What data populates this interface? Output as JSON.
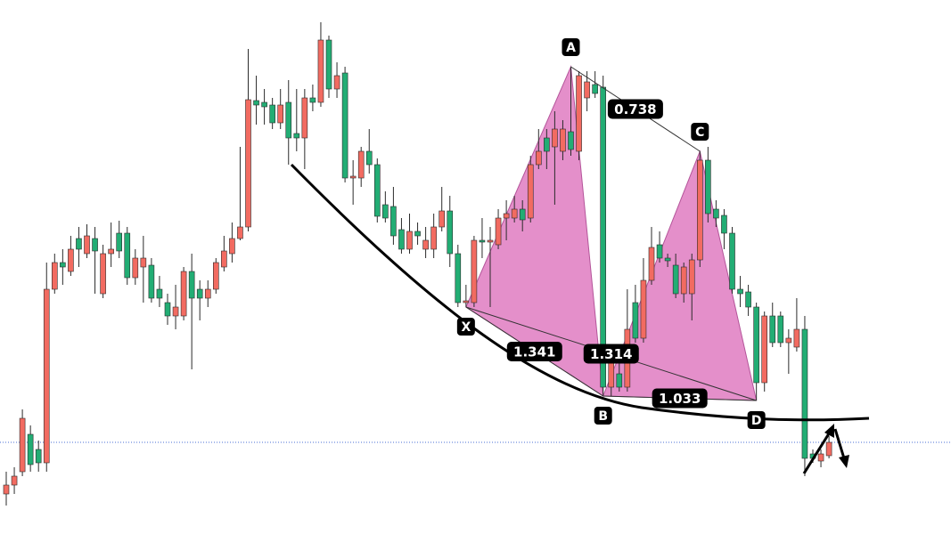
{
  "chart_data": {
    "type": "candlestick",
    "up_color": "#f26b61",
    "down_color": "#22ad74",
    "ylim": [
      0,
      600
    ],
    "open": [
      45,
      55,
      70,
      112,
      95,
      80,
      275,
      305,
      295,
      332,
      315,
      332,
      270,
      315,
      338,
      338,
      288,
      300,
      302,
      275,
      260,
      245,
      245,
      295,
      275,
      265,
      275,
      300,
      315,
      332,
      345,
      487,
      485,
      482,
      462,
      485,
      450,
      445,
      490,
      485,
      555,
      500,
      518,
      400,
      400,
      430,
      415,
      370,
      368,
      342,
      320,
      340,
      320,
      320,
      345,
      363,
      315,
      260,
      260,
      330,
      328,
      325,
      355,
      355,
      365,
      355,
      415,
      445,
      435,
      430,
      452,
      430,
      490,
      505,
      502,
      165,
      180,
      165,
      260,
      220,
      285,
      325,
      310,
      302,
      270,
      270,
      308,
      420,
      365,
      358,
      338,
      275,
      272,
      255,
      170,
      245,
      245,
      215,
      210,
      230,
      90,
      82,
      88
    ],
    "high": [
      70,
      75,
      140,
      122,
      105,
      305,
      315,
      320,
      335,
      345,
      348,
      345,
      325,
      350,
      352,
      345,
      320,
      335,
      310,
      290,
      270,
      280,
      300,
      315,
      285,
      285,
      310,
      335,
      350,
      435,
      545,
      515,
      500,
      490,
      500,
      510,
      500,
      500,
      505,
      575,
      560,
      530,
      525,
      420,
      435,
      455,
      422,
      385,
      390,
      355,
      360,
      350,
      345,
      360,
      390,
      380,
      325,
      280,
      335,
      355,
      345,
      365,
      375,
      380,
      375,
      425,
      455,
      455,
      475,
      465,
      525,
      520,
      520,
      520,
      515,
      210,
      200,
      275,
      280,
      310,
      345,
      340,
      315,
      315,
      305,
      315,
      430,
      435,
      375,
      365,
      345,
      290,
      280,
      260,
      250,
      260,
      250,
      230,
      265,
      245,
      95,
      95,
      110
    ],
    "low": [
      32,
      45,
      65,
      70,
      70,
      70,
      270,
      280,
      290,
      300,
      310,
      270,
      265,
      300,
      310,
      280,
      280,
      260,
      260,
      255,
      235,
      230,
      240,
      185,
      240,
      255,
      270,
      295,
      305,
      330,
      340,
      460,
      460,
      455,
      455,
      415,
      430,
      410,
      475,
      480,
      490,
      490,
      395,
      370,
      390,
      405,
      350,
      350,
      325,
      315,
      315,
      325,
      310,
      310,
      340,
      300,
      255,
      255,
      255,
      310,
      255,
      320,
      330,
      350,
      340,
      350,
      410,
      410,
      370,
      420,
      425,
      420,
      475,
      490,
      155,
      155,
      160,
      160,
      215,
      215,
      280,
      305,
      300,
      265,
      260,
      240,
      300,
      350,
      345,
      320,
      270,
      255,
      245,
      150,
      160,
      210,
      210,
      180,
      205,
      65,
      80,
      75,
      85
    ],
    "close": [
      55,
      65,
      130,
      78,
      80,
      275,
      305,
      300,
      320,
      320,
      335,
      318,
      315,
      320,
      318,
      288,
      310,
      310,
      265,
      265,
      245,
      255,
      295,
      265,
      265,
      275,
      305,
      318,
      332,
      345,
      488,
      482,
      480,
      462,
      482,
      445,
      445,
      490,
      485,
      555,
      500,
      515,
      400,
      402,
      430,
      415,
      357,
      355,
      335,
      320,
      340,
      335,
      330,
      345,
      363,
      315,
      260,
      262,
      330,
      328,
      330,
      355,
      360,
      365,
      353,
      415,
      430,
      430,
      455,
      455,
      432,
      515,
      508,
      495,
      165,
      205,
      165,
      230,
      220,
      285,
      322,
      310,
      307,
      270,
      300,
      308,
      420,
      360,
      355,
      338,
      275,
      270,
      255,
      170,
      245,
      215,
      215,
      220,
      230,
      85,
      85,
      90,
      103
    ],
    "price_line": 103,
    "pattern": {
      "points": [
        {
          "label": "X",
          "index": 57,
          "value": 255
        },
        {
          "label": "A",
          "index": 70,
          "value": 525
        },
        {
          "label": "B",
          "index": 74,
          "value": 155
        },
        {
          "label": "C",
          "index": 86,
          "value": 430
        },
        {
          "label": "D",
          "index": 93,
          "value": 150
        }
      ],
      "ratios": [
        0.738,
        1.341,
        1.314,
        1.033
      ]
    }
  }
}
